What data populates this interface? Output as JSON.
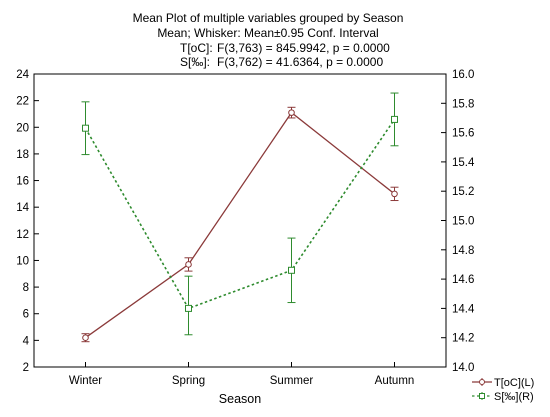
{
  "chart_data": {
    "type": "line",
    "title": "Mean Plot of multiple variables grouped by  Season",
    "subtitle": "Mean; Whisker: Mean±0.95 Conf. Interval",
    "annotations": [
      {
        "label": "T[oC]:",
        "text": "F(3,763) = 845.9942, p = 0.0000"
      },
      {
        "label": "S[‰]:",
        "text": "F(3,762) = 41.6364, p = 0.0000"
      }
    ],
    "xlabel": "Season",
    "categories": [
      "Winter",
      "Spring",
      "Summer",
      "Autumn"
    ],
    "y_left": {
      "min": 2,
      "max": 24,
      "ticks": [
        "2",
        "4",
        "6",
        "8",
        "10",
        "12",
        "14",
        "16",
        "18",
        "20",
        "22",
        "24"
      ]
    },
    "y_right": {
      "min": 14.0,
      "max": 16.0,
      "ticks": [
        "14.0",
        "14.2",
        "14.4",
        "14.6",
        "14.8",
        "15.0",
        "15.2",
        "15.4",
        "15.6",
        "15.8",
        "16.0"
      ]
    },
    "grid": false,
    "legend_position": "bottom-right",
    "series": [
      {
        "name": "T[oC](L)",
        "axis": "left",
        "color": "#8b3a3a",
        "style": "solid",
        "marker": "circle",
        "values": [
          4.2,
          9.7,
          21.1,
          15.0
        ],
        "lower": [
          3.9,
          9.2,
          20.7,
          14.5
        ],
        "upper": [
          4.5,
          10.2,
          21.5,
          15.5
        ]
      },
      {
        "name": "S[‰](R)",
        "axis": "right",
        "color": "#2e8b2e",
        "style": "dashed",
        "marker": "square",
        "values": [
          15.63,
          14.4,
          14.66,
          15.69
        ],
        "lower": [
          15.45,
          14.22,
          14.44,
          15.51
        ],
        "upper": [
          15.81,
          14.62,
          14.88,
          15.87
        ]
      }
    ]
  }
}
